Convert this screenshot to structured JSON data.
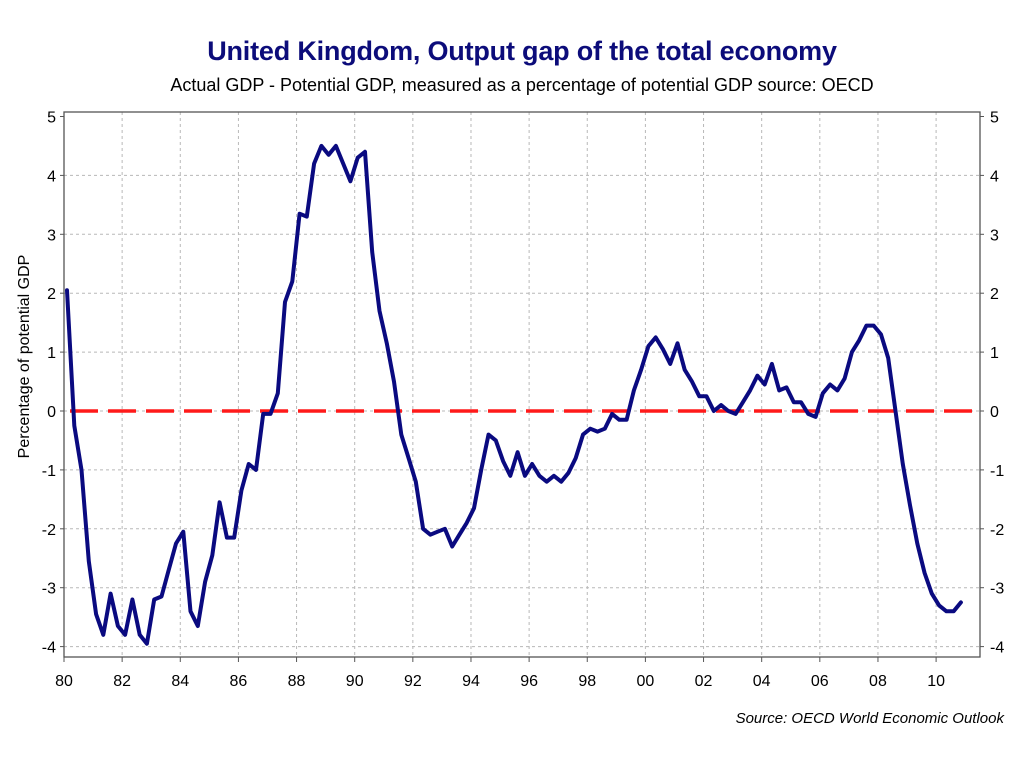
{
  "chart_data": {
    "type": "line",
    "title": "United Kingdom, Output gap of the total economy",
    "subtitle": "Actual GDP - Potential GDP, measured as a percentage of potential GDP source: OECD",
    "xlabel": "",
    "ylabel": "Percentage of potential GDP",
    "source_note": "Source: OECD World Economic Outlook",
    "xlim": [
      1980,
      2011.5
    ],
    "ylim": [
      -4.1,
      5.1
    ],
    "x_ticks": [
      {
        "value": 1980,
        "label": "80"
      },
      {
        "value": 1982,
        "label": "82"
      },
      {
        "value": 1984,
        "label": "84"
      },
      {
        "value": 1986,
        "label": "86"
      },
      {
        "value": 1988,
        "label": "88"
      },
      {
        "value": 1990,
        "label": "90"
      },
      {
        "value": 1992,
        "label": "92"
      },
      {
        "value": 1994,
        "label": "94"
      },
      {
        "value": 1996,
        "label": "96"
      },
      {
        "value": 1998,
        "label": "98"
      },
      {
        "value": 2000,
        "label": "00"
      },
      {
        "value": 2002,
        "label": "02"
      },
      {
        "value": 2004,
        "label": "04"
      },
      {
        "value": 2006,
        "label": "06"
      },
      {
        "value": 2008,
        "label": "08"
      },
      {
        "value": 2010,
        "label": "10"
      }
    ],
    "y_ticks": [
      {
        "value": 5,
        "label": "5"
      },
      {
        "value": 4,
        "label": "4"
      },
      {
        "value": 3,
        "label": "3"
      },
      {
        "value": 2,
        "label": "2"
      },
      {
        "value": 1,
        "label": "1"
      },
      {
        "value": 0,
        "label": "0"
      },
      {
        "value": -1,
        "label": "-1"
      },
      {
        "value": -2,
        "label": "-2"
      },
      {
        "value": -3,
        "label": "-3"
      },
      {
        "value": -4,
        "label": "-4"
      }
    ],
    "grid": true,
    "legend": "none",
    "reference_line": {
      "name": "zero-line",
      "value": 0,
      "color": "#ff1a1a",
      "style": "dashed"
    },
    "series": [
      {
        "name": "Output gap",
        "color": "#0a0a80",
        "x_start": 1980.0,
        "x_step": 0.25,
        "values": [
          2.05,
          -0.25,
          -1.0,
          -2.55,
          -3.45,
          -3.8,
          -3.1,
          -3.65,
          -3.8,
          -3.2,
          -3.8,
          -3.95,
          -3.2,
          -3.15,
          -2.7,
          -2.25,
          -2.05,
          -3.4,
          -3.65,
          -2.9,
          -2.45,
          -1.55,
          -2.15,
          -2.15,
          -1.35,
          -0.9,
          -1.0,
          -0.05,
          -0.05,
          0.3,
          1.85,
          2.2,
          3.35,
          3.3,
          4.2,
          4.5,
          4.35,
          4.5,
          4.2,
          3.9,
          4.3,
          4.4,
          2.7,
          1.7,
          1.15,
          0.5,
          -0.4,
          -0.8,
          -1.2,
          -2.0,
          -2.1,
          -2.05,
          -2.0,
          -2.3,
          -2.1,
          -1.9,
          -1.65,
          -1.0,
          -0.4,
          -0.5,
          -0.85,
          -1.1,
          -0.7,
          -1.1,
          -0.9,
          -1.1,
          -1.2,
          -1.1,
          -1.2,
          -1.05,
          -0.8,
          -0.4,
          -0.3,
          -0.35,
          -0.3,
          -0.05,
          -0.15,
          -0.15,
          0.35,
          0.7,
          1.1,
          1.25,
          1.05,
          0.8,
          1.15,
          0.7,
          0.5,
          0.25,
          0.25,
          0.0,
          0.1,
          0.0,
          -0.05,
          0.15,
          0.35,
          0.6,
          0.45,
          0.8,
          0.35,
          0.4,
          0.15,
          0.15,
          -0.05,
          -0.1,
          0.3,
          0.45,
          0.35,
          0.55,
          1.0,
          1.2,
          1.45,
          1.45,
          1.3,
          0.9,
          0.0,
          -0.9,
          -1.6,
          -2.25,
          -2.75,
          -3.1,
          -3.3,
          -3.4,
          -3.4,
          -3.25
        ]
      }
    ]
  }
}
